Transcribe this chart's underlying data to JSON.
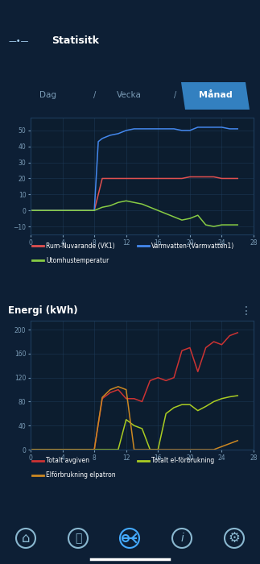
{
  "bg_color": "#0d1f35",
  "header_color": "#0d1f35",
  "panel_bg": "#0b1c2e",
  "chart_bg": "#0c1e30",
  "grid_color": "#1e3d5c",
  "text_color": "#ffffff",
  "dim_text_color": "#7a9bb5",
  "title": "Statisitk",
  "tab_labels": [
    "Dag",
    "Vecka",
    "Månad"
  ],
  "active_tab": 2,
  "chart1": {
    "x": [
      0,
      1,
      2,
      3,
      4,
      5,
      6,
      7,
      8,
      8.5,
      9,
      10,
      11,
      12,
      13,
      14,
      15,
      16,
      17,
      18,
      19,
      20,
      21,
      22,
      23,
      24,
      25,
      26
    ],
    "rum": [
      0,
      0,
      0,
      0,
      0,
      0,
      0,
      0,
      0,
      10,
      20,
      20,
      20,
      20,
      20,
      20,
      20,
      20,
      20,
      20,
      20,
      21,
      21,
      21,
      21,
      20,
      20,
      20
    ],
    "varmvatten": [
      0,
      0,
      0,
      0,
      0,
      0,
      0,
      0,
      0,
      43,
      45,
      47,
      48,
      50,
      51,
      51,
      51,
      51,
      51,
      51,
      50,
      50,
      52,
      52,
      52,
      52,
      51,
      51
    ],
    "utomhus": [
      0,
      0,
      0,
      0,
      0,
      0,
      0,
      0,
      0,
      1,
      2,
      3,
      5,
      6,
      5,
      4,
      2,
      0,
      -2,
      -4,
      -6,
      -5,
      -3,
      -9,
      -10,
      -9,
      -9,
      -9
    ],
    "rum_color": "#e05050",
    "varmvatten_color": "#4488ee",
    "utomhus_color": "#88cc44",
    "ylim": [
      -15,
      58
    ],
    "yticks": [
      -10,
      0,
      10,
      20,
      30,
      40,
      50
    ],
    "xlim": [
      0,
      28
    ],
    "xticks": [
      0,
      4,
      8,
      12,
      16,
      20,
      24,
      28
    ],
    "legend": [
      "Rum-Nuvarande (VK1)",
      "Varmvatten-(Varmvatten1)",
      "Utomhustemperatur"
    ]
  },
  "chart2": {
    "x": [
      0,
      1,
      2,
      3,
      4,
      5,
      6,
      7,
      8,
      9,
      10,
      11,
      12,
      13,
      14,
      15,
      16,
      17,
      18,
      19,
      20,
      21,
      22,
      23,
      24,
      25,
      26
    ],
    "totalt_avgiven": [
      0,
      0,
      0,
      0,
      0,
      0,
      0,
      0,
      0,
      85,
      95,
      100,
      85,
      85,
      80,
      115,
      120,
      115,
      120,
      165,
      170,
      130,
      170,
      180,
      175,
      190,
      195
    ],
    "totalt_el": [
      0,
      0,
      0,
      0,
      0,
      0,
      0,
      0,
      0,
      0,
      0,
      0,
      50,
      40,
      35,
      0,
      0,
      60,
      70,
      75,
      75,
      65,
      72,
      80,
      85,
      88,
      90
    ],
    "elpatron": [
      0,
      0,
      0,
      0,
      0,
      0,
      0,
      0,
      0,
      87,
      100,
      105,
      100,
      0,
      0,
      0,
      0,
      0,
      0,
      0,
      0,
      0,
      0,
      0,
      5,
      10,
      15
    ],
    "totalt_avgiven_color": "#cc3333",
    "totalt_el_color": "#aacc22",
    "elpatron_color": "#cc8822",
    "ylim": [
      0,
      215
    ],
    "yticks": [
      0,
      40,
      80,
      120,
      160,
      200
    ],
    "xlim": [
      0,
      28
    ],
    "xticks": [
      0,
      4,
      8,
      12,
      16,
      20,
      24,
      28
    ],
    "title": "Energi (kWh)",
    "legend": [
      "Totalt avgiven",
      "Totalt el-förbrukning",
      "Elförbrukning elpatron"
    ]
  }
}
